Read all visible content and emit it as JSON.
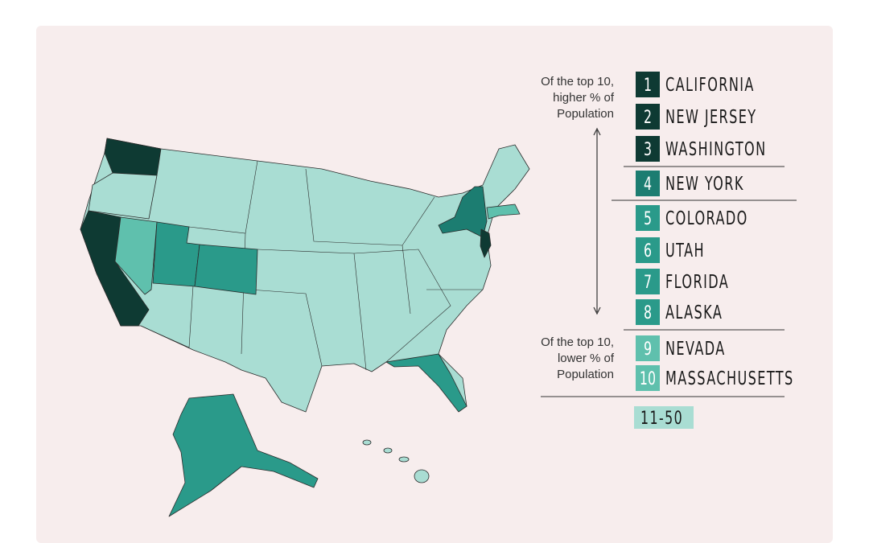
{
  "annotations": {
    "higher": [
      "Of the top 10,",
      "higher % of",
      "Population"
    ],
    "lower": [
      "Of the top 10,",
      "lower % of",
      "Population"
    ]
  },
  "legend": {
    "items": [
      {
        "rank": 1,
        "state": "CALIFORNIA",
        "color": "#0e3a33"
      },
      {
        "rank": 2,
        "state": "NEW JERSEY",
        "color": "#0e3a33"
      },
      {
        "rank": 3,
        "state": "WASHINGTON",
        "color": "#0e3a33"
      },
      {
        "rank": 4,
        "state": "NEW YORK",
        "color": "#1c7d71"
      },
      {
        "rank": 5,
        "state": "COLORADO",
        "color": "#2a9a8a"
      },
      {
        "rank": 6,
        "state": "UTAH",
        "color": "#2a9a8a"
      },
      {
        "rank": 7,
        "state": "FLORIDA",
        "color": "#2a9a8a"
      },
      {
        "rank": 8,
        "state": "ALASKA",
        "color": "#2a9a8a"
      },
      {
        "rank": 9,
        "state": "NEVADA",
        "color": "#5fc0ad"
      },
      {
        "rank": 10,
        "state": "MASSACHUSETTS",
        "color": "#5fc0ad"
      }
    ],
    "other": {
      "label": "11-50",
      "color": "#a9ddd3"
    }
  }
}
